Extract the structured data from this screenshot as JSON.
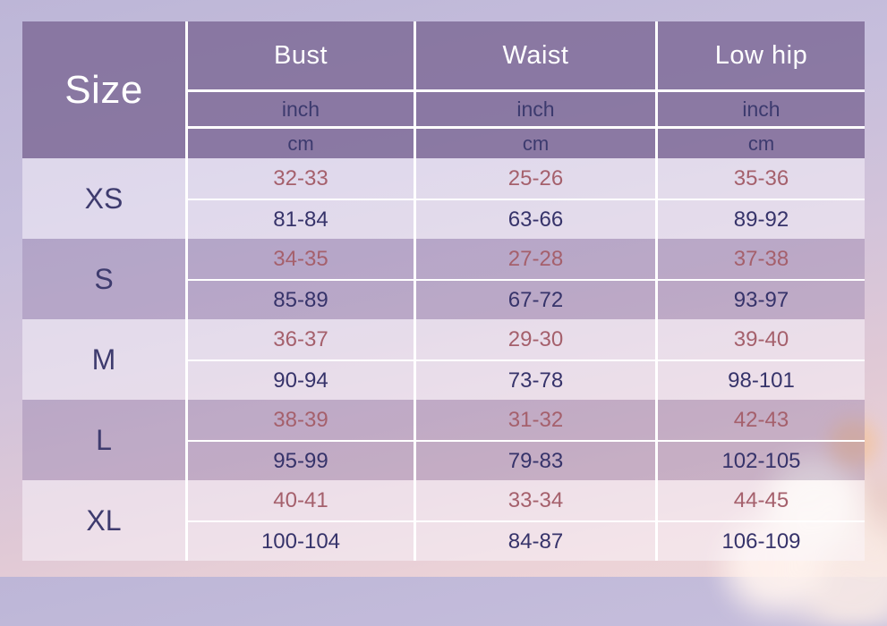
{
  "header": {
    "size": "Size",
    "bust": "Bust",
    "waist": "Waist",
    "low_hip": "Low hip",
    "inch": "inch",
    "cm": "cm"
  },
  "rows": [
    {
      "size": "XS",
      "bust_inch": "32-33",
      "bust_cm": "81-84",
      "waist_inch": "25-26",
      "waist_cm": "63-66",
      "hip_inch": "35-36",
      "hip_cm": "89-92"
    },
    {
      "size": "S",
      "bust_inch": "34-35",
      "bust_cm": "85-89",
      "waist_inch": "27-28",
      "waist_cm": "67-72",
      "hip_inch": "37-38",
      "hip_cm": "93-97"
    },
    {
      "size": "M",
      "bust_inch": "36-37",
      "bust_cm": "90-94",
      "waist_inch": "29-30",
      "waist_cm": "73-78",
      "hip_inch": "39-40",
      "hip_cm": "98-101"
    },
    {
      "size": "L",
      "bust_inch": "38-39",
      "bust_cm": "95-99",
      "waist_inch": "31-32",
      "waist_cm": "79-83",
      "hip_inch": "42-43",
      "hip_cm": "102-105"
    },
    {
      "size": "XL",
      "bust_inch": "40-41",
      "bust_cm": "100-104",
      "waist_inch": "33-34",
      "waist_cm": "84-87",
      "hip_inch": "44-45",
      "hip_cm": "106-109"
    }
  ],
  "colors": {
    "header_background": "#78628f",
    "header_text": "#ffffff",
    "unit_text": "#3c3a6e",
    "size_label_text": "#3e3b6e",
    "inch_value_text": "#a5606c",
    "cm_value_text": "#36336a",
    "grid_line": "#ffffff",
    "background_top": "#bdb6d7",
    "background_bottom": "#eed6d8"
  },
  "chart_data": {
    "type": "table",
    "title": "Garment size chart",
    "columns": [
      "Size",
      "Bust",
      "Waist",
      "Low hip"
    ],
    "units": [
      "inch",
      "cm"
    ],
    "rows": [
      {
        "size": "XS",
        "bust": {
          "inch": "32-33",
          "cm": "81-84"
        },
        "waist": {
          "inch": "25-26",
          "cm": "63-66"
        },
        "low_hip": {
          "inch": "35-36",
          "cm": "89-92"
        }
      },
      {
        "size": "S",
        "bust": {
          "inch": "34-35",
          "cm": "85-89"
        },
        "waist": {
          "inch": "27-28",
          "cm": "67-72"
        },
        "low_hip": {
          "inch": "37-38",
          "cm": "93-97"
        }
      },
      {
        "size": "M",
        "bust": {
          "inch": "36-37",
          "cm": "90-94"
        },
        "waist": {
          "inch": "29-30",
          "cm": "73-78"
        },
        "low_hip": {
          "inch": "39-40",
          "cm": "98-101"
        }
      },
      {
        "size": "L",
        "bust": {
          "inch": "38-39",
          "cm": "95-99"
        },
        "waist": {
          "inch": "31-32",
          "cm": "79-83"
        },
        "low_hip": {
          "inch": "42-43",
          "cm": "102-105"
        }
      },
      {
        "size": "XL",
        "bust": {
          "inch": "40-41",
          "cm": "100-104"
        },
        "waist": {
          "inch": "33-34",
          "cm": "84-87"
        },
        "low_hip": {
          "inch": "44-45",
          "cm": "106-109"
        }
      }
    ]
  }
}
